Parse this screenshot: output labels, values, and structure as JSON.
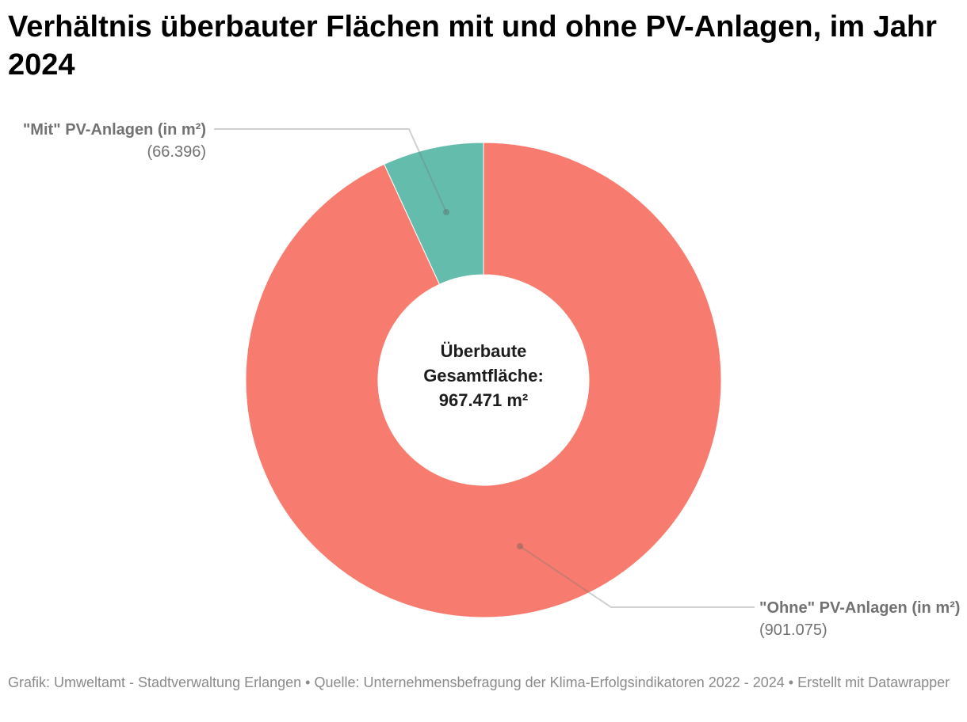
{
  "title": "Verhältnis überbauter Flächen mit und ohne PV-Anlagen, im Jahr 2024",
  "footer": "Grafik: Umweltamt - Stadtverwaltung Erlangen • Quelle: Unternehmensbefragung der Klima-Erfolgsindikatoren 2022 - 2024 • Erstellt mit Datawrapper",
  "chart_data": {
    "type": "pie",
    "variant": "donut",
    "title": "Verhältnis überbauter Flächen mit und ohne PV-Anlagen, im Jahr 2024",
    "center_label": "Überbaute Gesamtfläche: 967.471 m²",
    "slices": [
      {
        "name": "\"Mit\" PV-Anlagen (in m²)",
        "value": 66396,
        "value_label": "(66.396)",
        "color": "#64bcac"
      },
      {
        "name": "\"Ohne\" PV-Anlagen (in m²)",
        "value": 901075,
        "value_label": "(901.075)",
        "color": "#f87b6f"
      }
    ],
    "total": 967471
  },
  "labels": {
    "mit_name": "\"Mit\" PV-Anlagen (in m²)",
    "mit_value": "(66.396)",
    "ohne_name": "\"Ohne\" PV-Anlagen (in m²)",
    "ohne_value": "(901.075)"
  },
  "center": {
    "line1": "Überbaute",
    "line2": "Gesamtfläche:",
    "line3": "967.471 m²"
  }
}
